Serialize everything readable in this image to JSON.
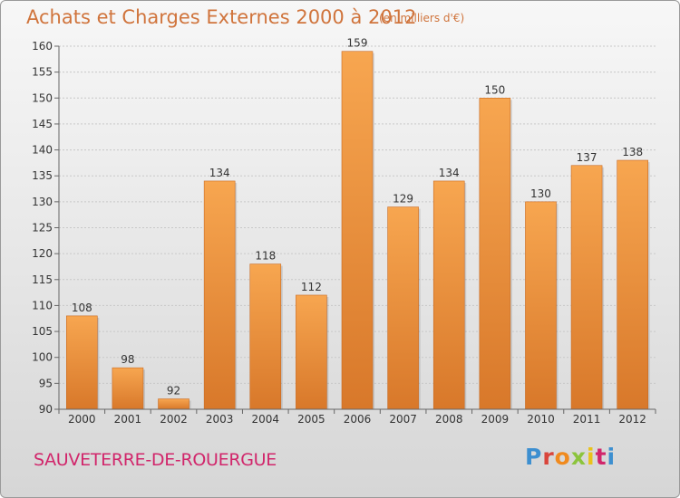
{
  "header": {
    "title": "Achats et Charges Externes 2000 à 2012",
    "unit": "(en milliers d'€)"
  },
  "footer": {
    "location": "SAUVETERRE-DE-ROUERGUE",
    "logo": "Proxiti"
  },
  "colors": {
    "title": "#d0743c",
    "location": "#d1266b",
    "bar_light": "#f7a650",
    "bar_dark": "#d8782a",
    "logo_letters": [
      "#3d8fd0",
      "#d9453b",
      "#f08a1e",
      "#8cc43d",
      "#e9c21a",
      "#d1266b",
      "#3d8fd0"
    ]
  },
  "chart_data": {
    "type": "bar",
    "categories": [
      "2000",
      "2001",
      "2002",
      "2003",
      "2004",
      "2005",
      "2006",
      "2007",
      "2008",
      "2009",
      "2010",
      "2011",
      "2012"
    ],
    "values": [
      108,
      98,
      92,
      134,
      118,
      112,
      159,
      129,
      134,
      150,
      130,
      137,
      138
    ],
    "title": "Achats et Charges Externes 2000 à 2012",
    "xlabel": "",
    "ylabel": "",
    "ylim": [
      90,
      160
    ],
    "yticks": [
      90,
      95,
      100,
      105,
      110,
      115,
      120,
      125,
      130,
      135,
      140,
      145,
      150,
      155,
      160
    ],
    "grid": true,
    "data_labels": true
  }
}
